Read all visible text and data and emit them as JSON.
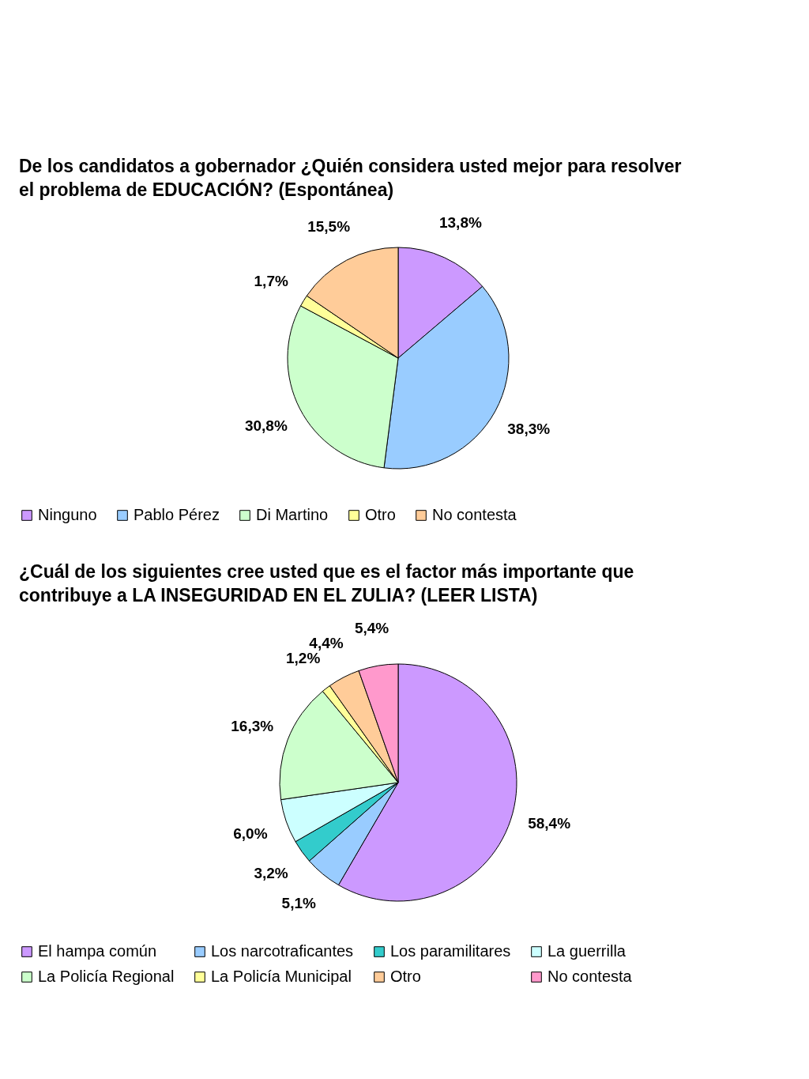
{
  "chart_data": [
    {
      "type": "pie",
      "title": "De los candidatos a gobernador ¿Quién considera usted mejor para resolver el problema de EDUCACIÓN? (Espontánea)",
      "categories": [
        "Ninguno",
        "Pablo Pérez",
        "Di Martino",
        "Otro",
        "No contesta"
      ],
      "values": [
        13.8,
        38.3,
        30.8,
        1.7,
        15.5
      ],
      "colors": [
        "#cc99ff",
        "#99ccff",
        "#ccffcc",
        "#ffff99",
        "#ffcc99"
      ],
      "value_labels": [
        "13,8%",
        "38,3%",
        "30,8%",
        "1,7%",
        "15,5%"
      ],
      "legend": "bottom"
    },
    {
      "type": "pie",
      "title": "¿Cuál de los siguientes cree usted que es el factor más importante que contribuye a LA INSEGURIDAD EN EL ZULIA? (LEER LISTA)",
      "categories": [
        "El hampa común",
        "Los narcotraficantes",
        "Los paramilitares",
        "La guerrilla",
        "La Policía Regional",
        "La Policía Municipal",
        "Otro",
        "No contesta"
      ],
      "values": [
        58.4,
        5.1,
        3.2,
        6.0,
        16.3,
        1.2,
        4.4,
        5.4
      ],
      "colors": [
        "#cc99ff",
        "#99ccff",
        "#33cccc",
        "#ccffff",
        "#ccffcc",
        "#ffff99",
        "#ffcc99",
        "#ff99cc"
      ],
      "value_labels": [
        "58,4%",
        "5,1%",
        "3,2%",
        "6,0%",
        "16,3%",
        "1,2%",
        "4,4%",
        "5,4%"
      ],
      "legend": "bottom"
    }
  ]
}
